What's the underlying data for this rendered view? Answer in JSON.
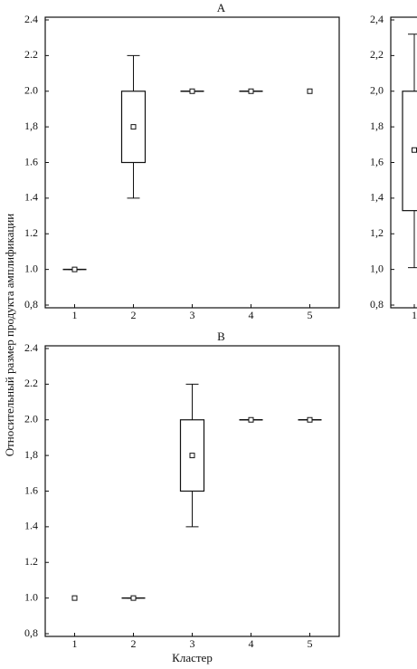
{
  "chart_data": [
    {
      "type": "box",
      "title": "A",
      "y_label": "Относительный размер продукта амплификации",
      "categories": [
        "1",
        "2",
        "3",
        "4",
        "5"
      ],
      "boxes": {
        "center": [
          1.0,
          1.8,
          2.0,
          2.0,
          2.0
        ],
        "box_low": [
          1.0,
          1.6,
          2.0,
          2.0,
          null
        ],
        "box_high": [
          1.0,
          2.0,
          2.0,
          2.0,
          null
        ],
        "whisker_low": [
          1.0,
          1.4,
          2.0,
          2.0,
          null
        ],
        "whisker_high": [
          1.0,
          2.2,
          2.0,
          2.0,
          null
        ]
      },
      "ylim": [
        0.8,
        2.4
      ],
      "yticks": [
        {
          "value": 0.8,
          "label": "0,8"
        },
        {
          "value": 1.0,
          "label": "1.0"
        },
        1.2,
        1.4,
        1.6,
        {
          "value": 1.8,
          "label": "1,8"
        },
        {
          "value": 2.0,
          "label": "2.0"
        },
        2.2,
        2.4
      ]
    },
    {
      "type": "box",
      "title": "B",
      "x_label": "Кластер",
      "categories": [
        "1",
        "2",
        "3",
        "4",
        "5"
      ],
      "boxes": {
        "center": [
          1.0,
          1.0,
          1.8,
          2.0,
          2.0
        ],
        "box_low": [
          null,
          1.0,
          1.6,
          2.0,
          2.0
        ],
        "box_high": [
          null,
          1.0,
          2.0,
          2.0,
          2.0
        ],
        "whisker_low": [
          null,
          1.0,
          1.4,
          2.0,
          2.0
        ],
        "whisker_high": [
          null,
          1.0,
          2.2,
          2.0,
          2.0
        ]
      },
      "ylim": [
        0.8,
        2.4
      ],
      "yticks": [
        {
          "value": 0.8,
          "label": "0,8"
        },
        {
          "value": 1.0,
          "label": "1.0"
        },
        1.2,
        1.4,
        1.6,
        {
          "value": 1.8,
          "label": "1,8"
        },
        {
          "value": 2.0,
          "label": "2.0"
        },
        2.2,
        2.4
      ]
    },
    {
      "type": "box",
      "categories": [
        "1"
      ],
      "boxes": {
        "center": [
          1.67
        ],
        "box_low": [
          1.33
        ],
        "box_high": [
          2.0
        ],
        "whisker_low": [
          1.01
        ],
        "whisker_high": [
          2.32
        ]
      },
      "ylim": [
        0.8,
        2.4
      ],
      "yticks": [
        {
          "value": 0.8,
          "label": "0,8"
        },
        {
          "value": 1.0,
          "label": "1,0"
        },
        {
          "value": 1.2,
          "label": "1,2"
        },
        {
          "value": 1.4,
          "label": "1,4"
        },
        {
          "value": 1.6,
          "label": "1,6"
        },
        {
          "value": 1.8,
          "label": "1,8"
        },
        {
          "value": 2.0,
          "label": "2,0"
        },
        {
          "value": 2.2,
          "label": "2,2"
        },
        {
          "value": 2.4,
          "label": "2,4"
        }
      ]
    }
  ]
}
